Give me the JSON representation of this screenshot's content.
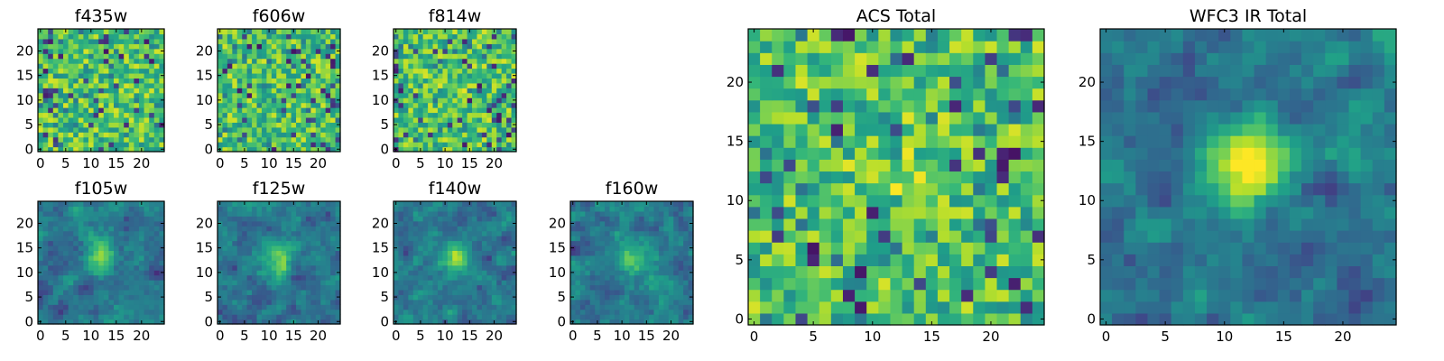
{
  "chart_data": [
    {
      "type": "heatmap",
      "title": "f435w",
      "xticks": [
        "0",
        "5",
        "10",
        "15",
        "20"
      ],
      "yticks": [
        "0",
        "5",
        "10",
        "15",
        "20"
      ],
      "xlim": [
        -0.5,
        24.5
      ],
      "ylim": [
        -0.5,
        24.5
      ],
      "grid_size": 25,
      "colormap": "viridis",
      "source_peak": 0.0
    },
    {
      "type": "heatmap",
      "title": "f606w",
      "xticks": [
        "0",
        "5",
        "10",
        "15",
        "20"
      ],
      "yticks": [
        "0",
        "5",
        "10",
        "15",
        "20"
      ],
      "xlim": [
        -0.5,
        24.5
      ],
      "ylim": [
        -0.5,
        24.5
      ],
      "grid_size": 25,
      "colormap": "viridis",
      "source_peak": 0.0
    },
    {
      "type": "heatmap",
      "title": "f814w",
      "xticks": [
        "0",
        "5",
        "10",
        "15",
        "20"
      ],
      "yticks": [
        "0",
        "5",
        "10",
        "15",
        "20"
      ],
      "xlim": [
        -0.5,
        24.5
      ],
      "ylim": [
        -0.5,
        24.5
      ],
      "grid_size": 25,
      "colormap": "viridis",
      "source_peak": 0.05
    },
    {
      "type": "heatmap",
      "title": "f105w",
      "xticks": [
        "0",
        "5",
        "10",
        "15",
        "20"
      ],
      "yticks": [
        "0",
        "5",
        "10",
        "15",
        "20"
      ],
      "xlim": [
        -0.5,
        24.5
      ],
      "ylim": [
        -0.5,
        24.5
      ],
      "grid_size": 25,
      "colormap": "viridis",
      "source_peak": 0.45
    },
    {
      "type": "heatmap",
      "title": "f125w",
      "xticks": [
        "0",
        "5",
        "10",
        "15",
        "20"
      ],
      "yticks": [
        "0",
        "5",
        "10",
        "15",
        "20"
      ],
      "xlim": [
        -0.5,
        24.5
      ],
      "ylim": [
        -0.5,
        24.5
      ],
      "grid_size": 25,
      "colormap": "viridis",
      "source_peak": 0.45
    },
    {
      "type": "heatmap",
      "title": "f140w",
      "xticks": [
        "0",
        "5",
        "10",
        "15",
        "20"
      ],
      "yticks": [
        "0",
        "5",
        "10",
        "15",
        "20"
      ],
      "xlim": [
        -0.5,
        24.5
      ],
      "ylim": [
        -0.5,
        24.5
      ],
      "grid_size": 25,
      "colormap": "viridis",
      "source_peak": 0.45
    },
    {
      "type": "heatmap",
      "title": "f160w",
      "xticks": [
        "0",
        "5",
        "10",
        "15",
        "20"
      ],
      "yticks": [
        "0",
        "5",
        "10",
        "15",
        "20"
      ],
      "xlim": [
        -0.5,
        24.5
      ],
      "ylim": [
        -0.5,
        24.5
      ],
      "grid_size": 25,
      "colormap": "viridis",
      "source_peak": 0.45
    },
    {
      "type": "heatmap",
      "title": "ACS Total",
      "xticks": [
        "0",
        "5",
        "10",
        "15",
        "20"
      ],
      "yticks": [
        "0",
        "5",
        "10",
        "15",
        "20"
      ],
      "xlim": [
        -0.5,
        24.5
      ],
      "ylim": [
        -0.5,
        24.5
      ],
      "grid_size": 25,
      "colormap": "viridis",
      "source_peak": 0.08
    },
    {
      "type": "heatmap",
      "title": "WFC3 IR Total",
      "xticks": [
        "0",
        "5",
        "10",
        "15",
        "20"
      ],
      "yticks": [
        "0",
        "5",
        "10",
        "15",
        "20"
      ],
      "xlim": [
        -0.5,
        24.5
      ],
      "ylim": [
        -0.5,
        24.5
      ],
      "grid_size": 25,
      "colormap": "viridis",
      "source_peak": 0.8
    }
  ]
}
